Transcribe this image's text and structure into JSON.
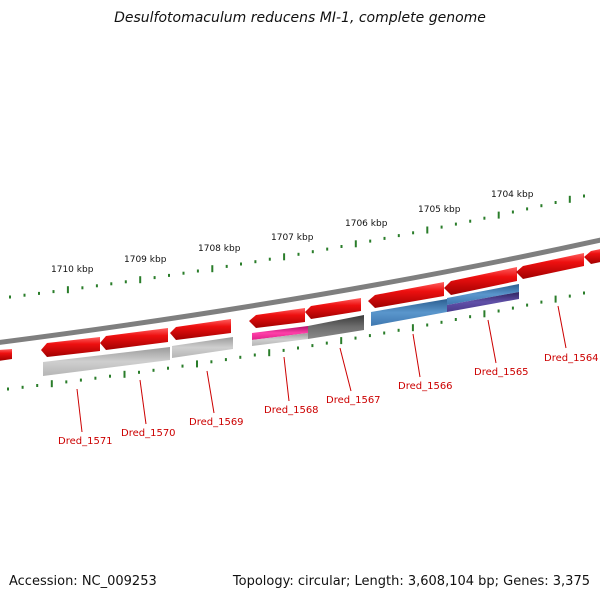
{
  "title": "Desulfotomaculum reducens MI-1, complete genome",
  "accession": "Accession: NC_009253",
  "summary": "Topology: circular; Length: 3,608,104 bp; Genes: 3,375",
  "scale_labels": [
    "1710 kbp",
    "1709 kbp",
    "1708 kbp",
    "1707 kbp",
    "1706 kbp",
    "1705 kbp",
    "1704 kbp"
  ],
  "gene_labels": [
    "Dred_1571",
    "Dred_1570",
    "Dred_1569",
    "Dred_1568",
    "Dred_1567",
    "Dred_1566",
    "Dred_1565",
    "Dred_1564"
  ],
  "colors": {
    "backbone": "#7f7f7f",
    "gene": "#e8101a",
    "tick": "#2a7d2a",
    "label": "#cc0000",
    "feature_gray": "#bdbdbd",
    "feature_dark": "#5a5a5a",
    "feature_magenta": "#e0208a",
    "feature_blue": "#3f78b0",
    "feature_purple": "#4a3a8a"
  }
}
